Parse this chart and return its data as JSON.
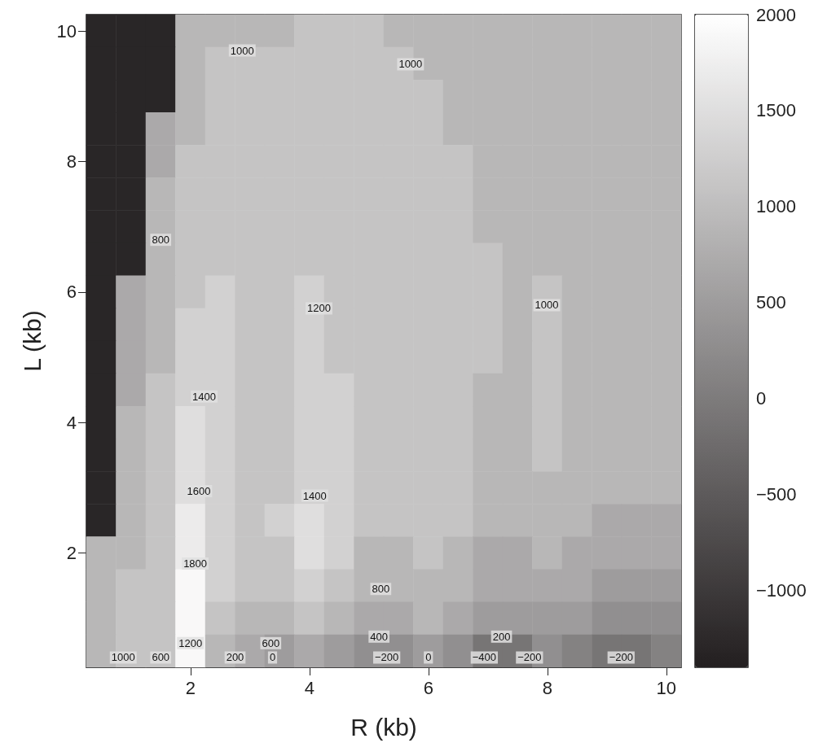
{
  "chart_data": {
    "type": "heatmap",
    "xlabel": "R (kb)",
    "ylabel": "L (kb)",
    "categories": [
      null,
      null,
      null,
      "2",
      null,
      null,
      null,
      "4",
      null,
      null,
      null,
      "6",
      null,
      null,
      null,
      "8",
      null,
      null,
      null,
      "10"
    ],
    "y_categories": [
      "10",
      null,
      null,
      null,
      "8",
      null,
      null,
      null,
      "6",
      null,
      null,
      null,
      "4",
      null,
      null,
      null,
      "2",
      null,
      null,
      null
    ],
    "cells": [
      [
        -1300,
        -1300,
        -1300,
        900,
        900,
        900,
        900,
        1100,
        1100,
        1100,
        900,
        900,
        900,
        900,
        900,
        900,
        900,
        900,
        900,
        900
      ],
      [
        -1300,
        -1300,
        -1300,
        900,
        1100,
        1100,
        1100,
        1100,
        1100,
        1100,
        1100,
        900,
        900,
        900,
        900,
        900,
        900,
        900,
        900,
        900
      ],
      [
        -1300,
        -1300,
        -1300,
        900,
        1100,
        1100,
        1100,
        1100,
        1100,
        1100,
        1100,
        1100,
        900,
        900,
        900,
        900,
        900,
        900,
        900,
        900
      ],
      [
        -1300,
        -1300,
        700,
        900,
        1100,
        1100,
        1100,
        1100,
        1100,
        1100,
        1100,
        1100,
        900,
        900,
        900,
        900,
        900,
        900,
        900,
        900
      ],
      [
        -1300,
        -1300,
        700,
        1100,
        1100,
        1100,
        1100,
        1100,
        1100,
        1100,
        1100,
        1100,
        1100,
        900,
        900,
        900,
        900,
        900,
        900,
        900
      ],
      [
        -1300,
        -1300,
        900,
        1100,
        1100,
        1100,
        1100,
        1100,
        1100,
        1100,
        1100,
        1100,
        1100,
        900,
        900,
        900,
        900,
        900,
        900,
        900
      ],
      [
        -1300,
        -1300,
        900,
        1100,
        1100,
        1100,
        1100,
        1100,
        1100,
        1100,
        1100,
        1100,
        1100,
        900,
        900,
        900,
        900,
        900,
        900,
        900
      ],
      [
        -1300,
        -1300,
        900,
        1100,
        1100,
        1100,
        1100,
        1100,
        1100,
        1100,
        1100,
        1100,
        1100,
        1100,
        900,
        900,
        900,
        900,
        900,
        900
      ],
      [
        -1300,
        700,
        900,
        1100,
        1300,
        1100,
        1100,
        1300,
        1100,
        1100,
        1100,
        1100,
        1100,
        1100,
        900,
        1100,
        900,
        900,
        900,
        900
      ],
      [
        -1300,
        700,
        900,
        1300,
        1300,
        1100,
        1100,
        1300,
        1100,
        1100,
        1100,
        1100,
        1100,
        1100,
        900,
        1100,
        900,
        900,
        900,
        900
      ],
      [
        -1300,
        700,
        900,
        1300,
        1300,
        1100,
        1100,
        1300,
        1100,
        1100,
        1100,
        1100,
        1100,
        1100,
        900,
        1100,
        900,
        900,
        900,
        900
      ],
      [
        -1300,
        700,
        1100,
        1300,
        1300,
        1100,
        1100,
        1300,
        1300,
        1100,
        1100,
        1100,
        1100,
        900,
        900,
        1100,
        900,
        900,
        900,
        900
      ],
      [
        -1300,
        900,
        1100,
        1500,
        1300,
        1100,
        1100,
        1300,
        1300,
        1100,
        1100,
        1100,
        1100,
        900,
        900,
        1100,
        900,
        900,
        900,
        900
      ],
      [
        -1300,
        900,
        1100,
        1500,
        1300,
        1100,
        1100,
        1300,
        1300,
        1100,
        1100,
        1100,
        1100,
        900,
        900,
        1100,
        900,
        900,
        900,
        900
      ],
      [
        -1300,
        900,
        1100,
        1500,
        1300,
        1100,
        1100,
        1300,
        1300,
        1100,
        1100,
        1100,
        1100,
        900,
        900,
        900,
        900,
        900,
        900,
        900
      ],
      [
        -1300,
        900,
        1100,
        1700,
        1300,
        1100,
        1300,
        1500,
        1300,
        1100,
        1100,
        1100,
        1100,
        900,
        900,
        900,
        900,
        700,
        700,
        700
      ],
      [
        900,
        900,
        1100,
        1700,
        1300,
        1100,
        1100,
        1500,
        1300,
        900,
        900,
        1100,
        900,
        700,
        700,
        900,
        700,
        700,
        700,
        700
      ],
      [
        900,
        1100,
        1100,
        1900,
        1300,
        1100,
        1100,
        1300,
        1100,
        900,
        900,
        900,
        900,
        700,
        700,
        700,
        700,
        500,
        500,
        500
      ],
      [
        900,
        1100,
        1100,
        1900,
        1100,
        900,
        900,
        1100,
        900,
        700,
        700,
        900,
        700,
        500,
        500,
        500,
        500,
        300,
        300,
        300
      ],
      [
        900,
        1100,
        1100,
        1900,
        900,
        700,
        500,
        700,
        500,
        300,
        300,
        500,
        300,
        -100,
        -100,
        300,
        100,
        -100,
        -100,
        100
      ]
    ],
    "clim": [
      -1400,
      2000
    ],
    "cticks": [
      -1000,
      -500,
      0,
      500,
      1000,
      1500,
      2000
    ],
    "annotations": [
      "1000",
      "1000",
      "800",
      "1200",
      "1000",
      "1400",
      "1600",
      "1400",
      "1800",
      "800",
      "600",
      "400",
      "200",
      "1000",
      "600",
      "1200",
      "200",
      "0",
      "−200",
      "0",
      "−400",
      "−200",
      "−200"
    ]
  }
}
